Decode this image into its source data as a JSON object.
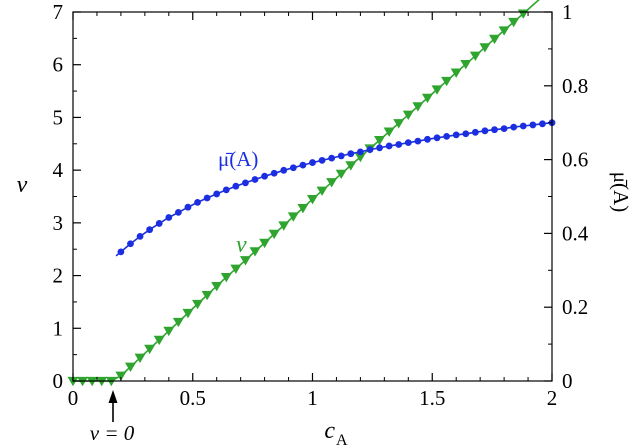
{
  "chart_data": {
    "type": "line",
    "xlabel": "c",
    "xlabel_sub": "A",
    "ylabel_left": "v",
    "ylabel_right": "μ̄(A)",
    "xlim": [
      0,
      2
    ],
    "ylim_left": [
      0,
      7
    ],
    "ylim_right": [
      0,
      1
    ],
    "x_ticks": [
      "0",
      "0.5",
      "1",
      "1.5",
      "2"
    ],
    "y_left_ticks": [
      "0",
      "1",
      "2",
      "3",
      "4",
      "5",
      "6",
      "7"
    ],
    "y_right_ticks": [
      "0",
      "0.2",
      "0.4",
      "0.6",
      "0.8",
      "1"
    ],
    "grid": false,
    "annotations": {
      "threshold": "v = 0",
      "mu_label": "μ̄(A)",
      "v_label": "v"
    },
    "series": [
      {
        "name": "v",
        "axis": "left",
        "color": "#2fa52f",
        "marker": "triangle-down",
        "x": [
          0,
          0.04,
          0.08,
          0.12,
          0.16,
          0.2,
          0.24,
          0.28,
          0.32,
          0.36,
          0.4,
          0.44,
          0.48,
          0.52,
          0.56,
          0.6,
          0.64,
          0.68,
          0.72,
          0.76,
          0.8,
          0.84,
          0.88,
          0.92,
          0.96,
          1.0,
          1.04,
          1.08,
          1.12,
          1.16,
          1.2,
          1.24,
          1.28,
          1.32,
          1.36,
          1.4,
          1.44,
          1.48,
          1.52,
          1.56,
          1.6,
          1.64,
          1.68,
          1.72,
          1.76,
          1.8,
          1.84,
          1.88,
          1.92,
          1.96,
          2.0
        ],
        "y": [
          0,
          0,
          0,
          0,
          0,
          0.1,
          0.27,
          0.44,
          0.61,
          0.78,
          0.95,
          1.12,
          1.29,
          1.46,
          1.63,
          1.8,
          1.97,
          2.13,
          2.29,
          2.46,
          2.62,
          2.79,
          2.95,
          3.12,
          3.28,
          3.45,
          3.61,
          3.77,
          3.93,
          4.09,
          4.25,
          4.41,
          4.57,
          4.73,
          4.89,
          5.05,
          5.21,
          5.37,
          5.53,
          5.69,
          5.85,
          6.01,
          6.17,
          6.33,
          6.49,
          6.65,
          6.81,
          6.97,
          7.13,
          7.29,
          7.45
        ]
      },
      {
        "name": "μ̄(A)",
        "axis": "right",
        "color": "#1c2fe0",
        "marker": "circle",
        "line_start": 0.18,
        "x": [
          0.2,
          0.24,
          0.28,
          0.32,
          0.36,
          0.4,
          0.44,
          0.48,
          0.52,
          0.56,
          0.6,
          0.64,
          0.68,
          0.72,
          0.76,
          0.8,
          0.84,
          0.88,
          0.92,
          0.96,
          1.0,
          1.04,
          1.08,
          1.12,
          1.16,
          1.2,
          1.24,
          1.28,
          1.32,
          1.36,
          1.4,
          1.44,
          1.48,
          1.52,
          1.56,
          1.6,
          1.64,
          1.68,
          1.72,
          1.76,
          1.8,
          1.84,
          1.88,
          1.92,
          1.96,
          2.0
        ],
        "y": [
          0.35,
          0.372,
          0.392,
          0.41,
          0.427,
          0.443,
          0.457,
          0.471,
          0.484,
          0.496,
          0.507,
          0.518,
          0.528,
          0.537,
          0.546,
          0.555,
          0.563,
          0.571,
          0.578,
          0.585,
          0.592,
          0.598,
          0.604,
          0.61,
          0.616,
          0.621,
          0.627,
          0.632,
          0.637,
          0.641,
          0.646,
          0.65,
          0.655,
          0.659,
          0.663,
          0.667,
          0.67,
          0.674,
          0.678,
          0.681,
          0.684,
          0.688,
          0.691,
          0.694,
          0.697,
          0.7
        ]
      }
    ]
  }
}
